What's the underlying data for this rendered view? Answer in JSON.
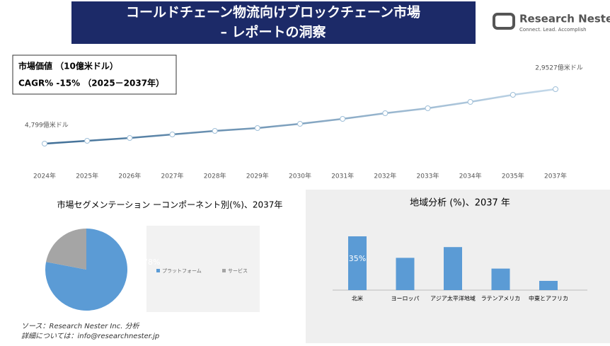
{
  "header": {
    "title_lines": [
      "コールドチェーン物流向けブロックチェーン市場",
      "– レポートの洞察"
    ],
    "logo": {
      "name": "Research Nester",
      "tagline": "Connect. Lead. Accomplish"
    }
  },
  "info": {
    "market_value": "市場価値 （10億米ドル）",
    "cagr": "CAGR% -15% （2025－2037年）"
  },
  "chart_data": [
    {
      "type": "line",
      "categories": [
        "2024年",
        "2025年",
        "2026年",
        "2027年",
        "2028年",
        "2029年",
        "2030年",
        "2031年",
        "2032年",
        "2033年",
        "2034年",
        "2035年",
        "2037年"
      ],
      "values": [
        4799,
        6083,
        7368,
        8973,
        10579,
        11863,
        13790,
        16038,
        18607,
        20855,
        23745,
        26956,
        29527
      ],
      "value_labels": [
        "4,799億米ドル",
        null,
        null,
        null,
        null,
        null,
        null,
        null,
        null,
        null,
        null,
        null,
        "2,9527億米ドル"
      ],
      "color_start": "#3f6e96",
      "color_end": "#c4d9ea"
    },
    {
      "type": "pie",
      "title": "市場セグメンテーション ーコンポーネント別(%)、2037年",
      "categories": [
        "プラットフォーム",
        "サービス"
      ],
      "values": [
        78,
        22
      ],
      "value_labels": [
        "78%",
        null
      ],
      "colors": [
        "#5b9bd5",
        "#a5a5a5"
      ]
    },
    {
      "type": "bar",
      "title": "地域分析 (%)、2037 年",
      "categories": [
        "北米",
        "ヨーロッパ",
        "アジア太平洋地域",
        "ラテンアメリカ",
        "中東とアフリカ"
      ],
      "values": [
        35,
        21,
        28,
        14,
        6
      ],
      "value_labels": [
        "35%",
        null,
        null,
        null,
        null
      ],
      "color": "#5b9bd5"
    }
  ],
  "footer": {
    "source": "ソース：Research Nester Inc. 分析",
    "contact": "詳細については：info@researchnester.jp"
  }
}
